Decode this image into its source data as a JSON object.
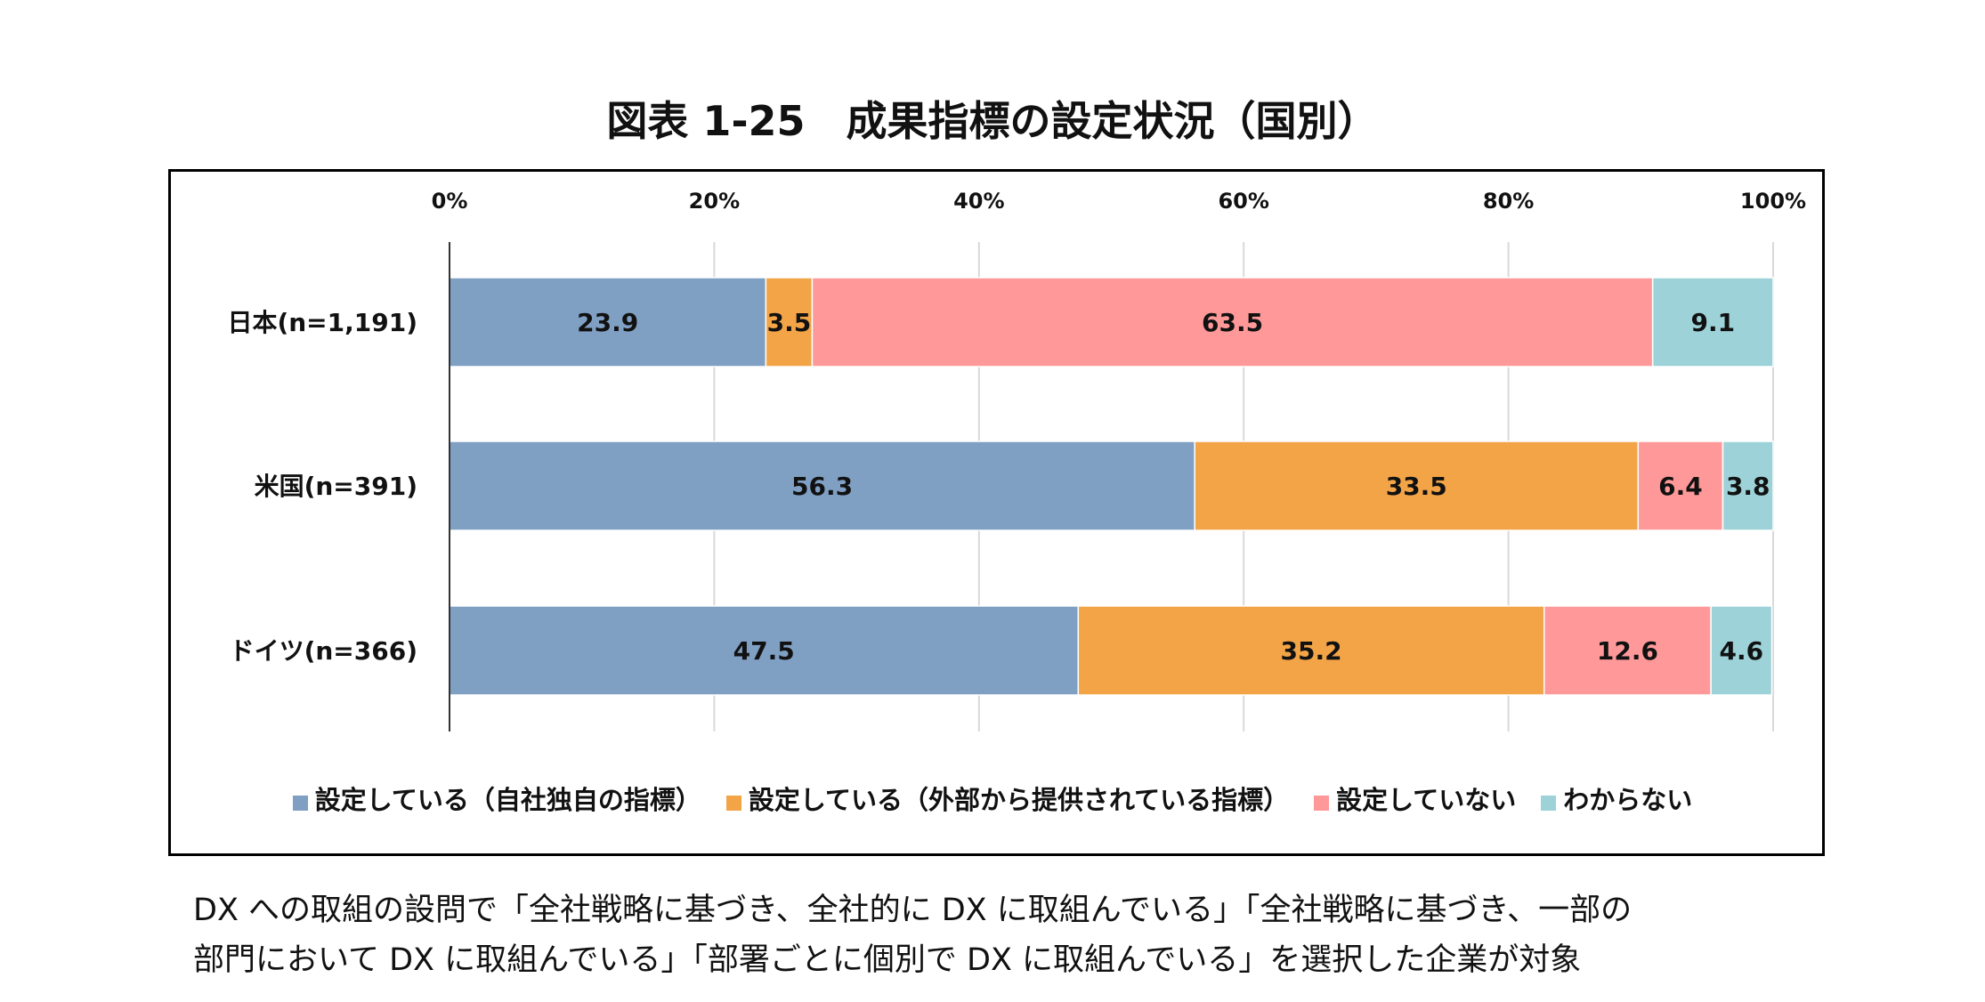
{
  "chart_data": {
    "type": "bar",
    "orientation": "horizontal",
    "stacked": true,
    "title": "図表 1-25　成果指標の設定状況（国別）",
    "categories": [
      "日本(n=1,191)",
      "米国(n=391)",
      "ドイツ(n=366)"
    ],
    "xlim": [
      0,
      100
    ],
    "xticks": [
      "0%",
      "20%",
      "40%",
      "60%",
      "80%",
      "100%"
    ],
    "grid": true,
    "legend_position": "bottom",
    "series": [
      {
        "name": "設定している（自社独自の指標）",
        "color": "#7F9FC3",
        "values": [
          23.9,
          56.3,
          47.5
        ]
      },
      {
        "name": "設定している（外部から提供されている指標）",
        "color": "#F2A447",
        "values": [
          3.5,
          33.5,
          35.2
        ]
      },
      {
        "name": "設定していない",
        "color": "#FF9999",
        "values": [
          63.5,
          6.4,
          12.6
        ]
      },
      {
        "name": "わからない",
        "color": "#9DD3D8",
        "values": [
          9.1,
          3.8,
          4.6
        ]
      }
    ]
  },
  "footnote": [
    "DX への取組の設問で「全社戦略に基づき、全社的に DX に取組んでいる」「全社戦略に基づき、一部の",
    "部門において DX に取組んでいる」「部署ごとに個別で DX に取組んでいる」を選択した企業が対象"
  ]
}
